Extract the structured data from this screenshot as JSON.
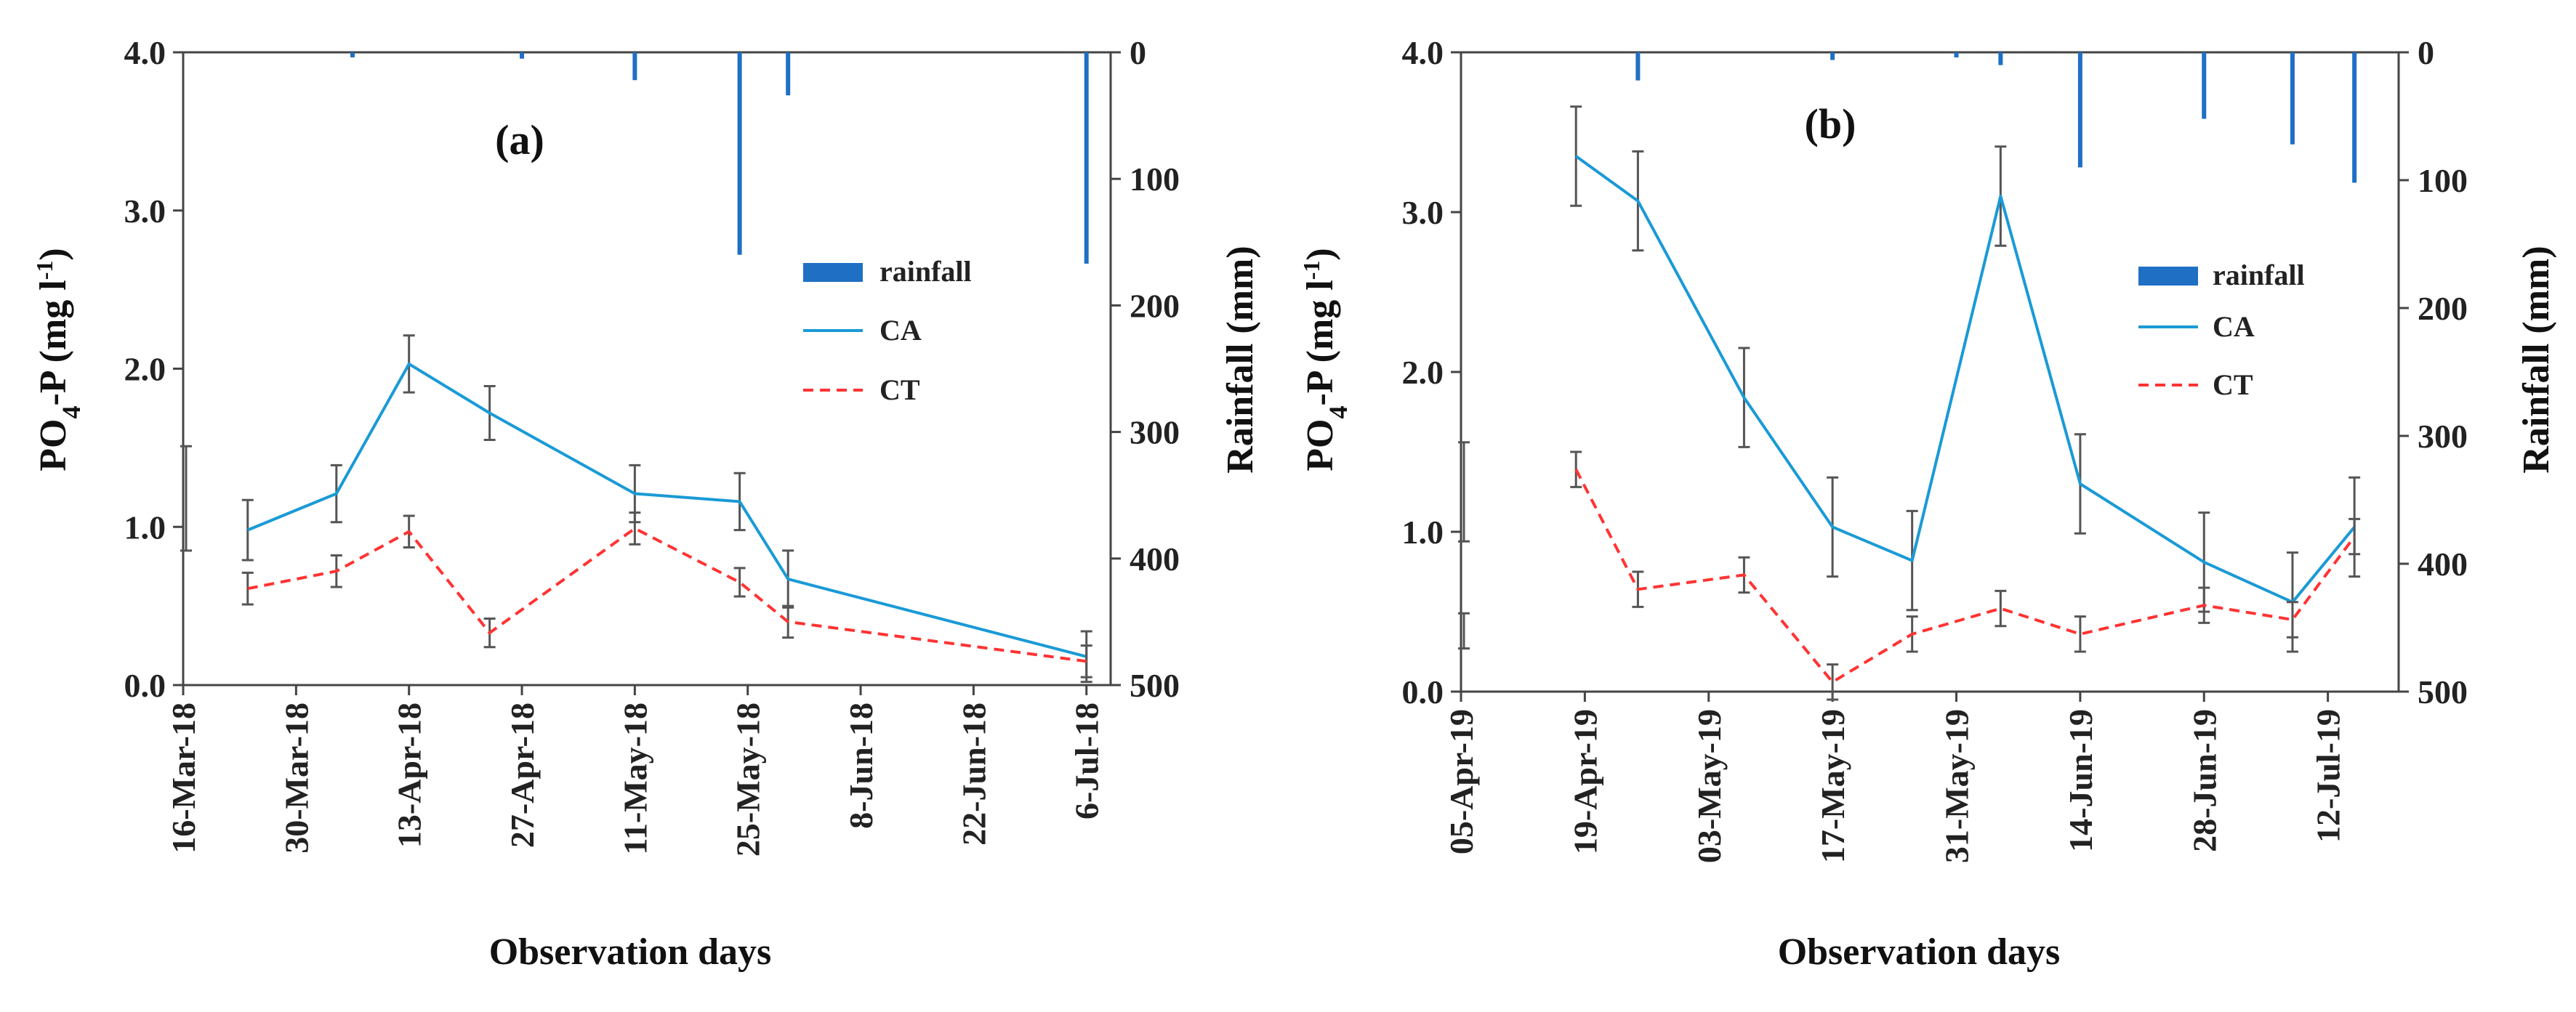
{
  "colors": {
    "rainfall": "#1f6fc5",
    "ca": "#1a9ad6",
    "ct": "#ff3333",
    "error_bar": "#555555"
  },
  "chart_data": [
    {
      "type": "line",
      "panel_label": "(a)",
      "xlabel": "Observation days",
      "ylabel_left": {
        "prefix": "PO",
        "sub": "4",
        "rest": "-P  (mg l",
        "sup": "-1",
        "end": ")"
      },
      "ylabel_right": "Rainfall (mm)",
      "ylim_left": [
        0,
        4.0
      ],
      "ylim_right": [
        0,
        500
      ],
      "right_axis_inverted": true,
      "yticks_left": [
        "0.0",
        "1.0",
        "2.0",
        "3.0",
        "4.0"
      ],
      "yticks_right": [
        "0",
        "100",
        "200",
        "300",
        "400",
        "500"
      ],
      "x_ticks": [
        "2018-03-16",
        "2018-03-30",
        "2018-04-13",
        "2018-04-27",
        "2018-05-11",
        "2018-05-25",
        "2018-06-08",
        "2018-06-22",
        "2018-07-06"
      ],
      "x_tick_labels": [
        "16-Mar-18",
        "30-Mar-18",
        "13-Apr-18",
        "27-Apr-18",
        "11-May-18",
        "25-May-18",
        "8-Jun-18",
        "22-Jun-18",
        "6-Jul-18"
      ],
      "x_range": [
        "2018-03-16",
        "2018-07-09"
      ],
      "legend": [
        "rainfall",
        "CA",
        "CT"
      ],
      "series": [
        {
          "name": "CA",
          "style": "solid",
          "x": [
            "2018-03-24",
            "2018-04-04",
            "2018-04-13",
            "2018-04-23",
            "2018-05-11",
            "2018-05-24",
            "2018-05-30",
            "2018-07-06"
          ],
          "y": [
            0.98,
            1.21,
            2.03,
            1.72,
            1.21,
            1.16,
            0.67,
            0.18
          ],
          "err": [
            0.19,
            0.18,
            0.18,
            0.17,
            0.18,
            0.18,
            0.18,
            0.16
          ]
        },
        {
          "name": "CT",
          "style": "dashed",
          "x": [
            "2018-03-24",
            "2018-04-04",
            "2018-04-13",
            "2018-04-23",
            "2018-05-11",
            "2018-05-24",
            "2018-05-30",
            "2018-07-06"
          ],
          "y": [
            0.61,
            0.72,
            0.97,
            0.33,
            0.99,
            0.65,
            0.4,
            0.15
          ],
          "err": [
            0.1,
            0.1,
            0.1,
            0.09,
            0.1,
            0.09,
            0.1,
            0.1
          ]
        }
      ],
      "unpaired_error_bars": [
        {
          "x": "2018-03-16",
          "y": 1.18,
          "err": 0.33
        }
      ],
      "rainfall": {
        "x": [
          "2018-04-06",
          "2018-04-27",
          "2018-05-11",
          "2018-05-24",
          "2018-05-30",
          "2018-07-06"
        ],
        "mm": [
          4,
          5,
          22,
          160,
          34,
          167
        ]
      }
    },
    {
      "type": "line",
      "panel_label": "(b)",
      "xlabel": "Observation days",
      "ylabel_left": {
        "prefix": "PO",
        "sub": "4",
        "rest": "-P  (mg l",
        "sup": "-1",
        "end": ")"
      },
      "ylabel_right": "Rainfall (mm)",
      "ylim_left": [
        0,
        4.0
      ],
      "ylim_right": [
        0,
        500
      ],
      "right_axis_inverted": true,
      "yticks_left": [
        "0.0",
        "1.0",
        "2.0",
        "3.0",
        "4.0"
      ],
      "yticks_right": [
        "0",
        "100",
        "200",
        "300",
        "400",
        "500"
      ],
      "x_ticks": [
        "2019-04-05",
        "2019-04-19",
        "2019-05-03",
        "2019-05-17",
        "2019-05-31",
        "2019-06-14",
        "2019-06-28",
        "2019-07-12"
      ],
      "x_tick_labels": [
        "05-Apr-19",
        "19-Apr-19",
        "03-May-19",
        "17-May-19",
        "31-May-19",
        "14-Jun-19",
        "28-Jun-19",
        "12-Jul-19"
      ],
      "x_range": [
        "2019-04-05",
        "2019-07-20"
      ],
      "legend": [
        "rainfall",
        "CA",
        "CT"
      ],
      "series": [
        {
          "name": "CA",
          "style": "solid",
          "x": [
            "2019-04-18",
            "2019-04-25",
            "2019-05-07",
            "2019-05-17",
            "2019-05-26",
            "2019-06-05",
            "2019-06-14",
            "2019-06-28",
            "2019-07-08",
            "2019-07-15"
          ],
          "y": [
            3.35,
            3.07,
            1.84,
            1.03,
            0.82,
            3.1,
            1.3,
            0.81,
            0.56,
            1.03
          ],
          "err": [
            0.31,
            0.31,
            0.31,
            0.31,
            0.31,
            0.31,
            0.31,
            0.31,
            0.31,
            0.31
          ]
        },
        {
          "name": "CT",
          "style": "dashed",
          "x": [
            "2019-04-18",
            "2019-04-25",
            "2019-05-07",
            "2019-05-17",
            "2019-05-26",
            "2019-06-05",
            "2019-06-14",
            "2019-06-28",
            "2019-07-08",
            "2019-07-15"
          ],
          "y": [
            1.39,
            0.64,
            0.73,
            0.06,
            0.36,
            0.52,
            0.36,
            0.54,
            0.45,
            0.97
          ],
          "err": [
            0.11,
            0.11,
            0.11,
            0.11,
            0.11,
            0.11,
            0.11,
            0.11,
            0.11,
            0.11
          ]
        }
      ],
      "unpaired_error_bars": [
        {
          "x": "2019-04-05",
          "y": 1.25,
          "err": 0.31
        },
        {
          "x": "2019-04-05",
          "y": 0.38,
          "err": 0.11
        }
      ],
      "rainfall": {
        "x": [
          "2019-04-25",
          "2019-05-17",
          "2019-05-31",
          "2019-06-05",
          "2019-06-14",
          "2019-06-28",
          "2019-07-08",
          "2019-07-15"
        ],
        "mm": [
          22,
          6,
          4,
          10,
          90,
          52,
          72,
          102
        ]
      }
    }
  ]
}
